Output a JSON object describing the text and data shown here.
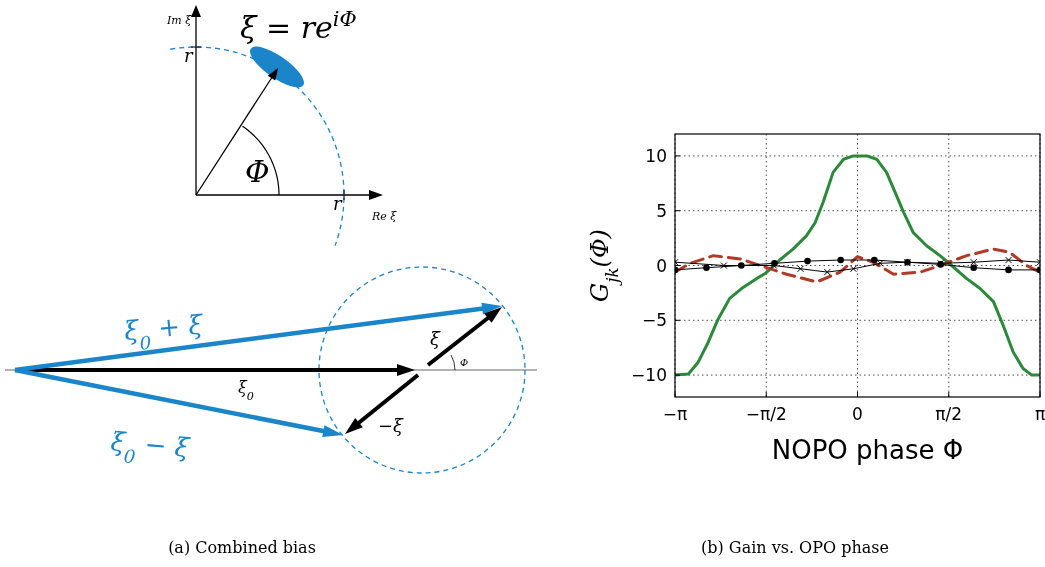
{
  "chart_data": [
    {
      "type": "other",
      "title": "(a) Combined bias",
      "annotations": [
        "ξ = re$^{iΦ}$",
        "Im ξ",
        "Re ξ",
        "r",
        "r",
        "Φ",
        "ξ$_{0}$ + ξ",
        "ξ$_{0}$ − ξ",
        "ξ",
        "Φ",
        "ξ$_{0}$",
        "−ξ"
      ]
    },
    {
      "type": "line",
      "title": "(b) Gain vs. OPO phase",
      "xlabel": "NOPO phase Φ",
      "ylabel": "G$_{jk}$(Φ)",
      "xlim": [
        -3.1416,
        3.1416
      ],
      "xticks": [
        {
          "value": -3.1416,
          "label": "−π"
        },
        {
          "value": -1.5708,
          "label": "−π/2"
        },
        0,
        {
          "value": 1.5708,
          "label": "π/2"
        },
        {
          "value": 3.1416,
          "label": "π"
        }
      ],
      "ylim": [
        -12,
        12
      ],
      "yticks": [
        -10,
        -5,
        0,
        5,
        10
      ],
      "grid": true,
      "series": [
        {
          "color": "#2a8a3a",
          "line_style": "solid",
          "marker": "none",
          "x": [
            -3.14,
            -2.91,
            -2.74,
            -2.57,
            -2.4,
            -2.2,
            -1.97,
            -1.74,
            -1.58,
            -1.34,
            -1.11,
            -0.88,
            -0.73,
            -0.59,
            -0.42,
            -0.24,
            -0.07,
            0.16,
            0.33,
            0.5,
            0.67,
            0.79,
            0.96,
            1.19,
            1.42,
            1.62,
            1.88,
            2.11,
            2.34,
            2.51,
            2.68,
            2.85,
            3.0,
            3.14
          ],
          "values": [
            -10,
            -9.9,
            -8.8,
            -7,
            -4.9,
            -3,
            -2,
            -1.2,
            -0.7,
            0.5,
            1.5,
            2.7,
            3.9,
            5.8,
            8.5,
            9.7,
            10,
            10,
            9.7,
            8.5,
            6.4,
            4.9,
            3,
            1.8,
            0.9,
            0,
            -1.2,
            -2.1,
            -3.3,
            -5.5,
            -7.9,
            -9.4,
            -10,
            -10
          ]
        },
        {
          "color": "#b03a26",
          "line_style": "dashed",
          "marker": "none",
          "x": [
            -3.14,
            -2.88,
            -2.48,
            -2.02,
            -1.56,
            -1.22,
            -0.7,
            -0.3,
            0.0,
            0.27,
            0.62,
            1.08,
            1.42,
            1.88,
            2.34,
            2.62,
            2.91,
            3.14
          ],
          "values": [
            -0.6,
            0.2,
            0.9,
            0.6,
            -0.2,
            -0.8,
            -1.5,
            -0.6,
            0.8,
            0.3,
            -0.8,
            -0.6,
            0,
            0.9,
            1.5,
            1.2,
            0,
            -0.6
          ]
        },
        {
          "color": "#000000",
          "line_style": "solid",
          "marker": "circle",
          "x": [
            -3.14,
            -2.6,
            -2.0,
            -1.43,
            -0.86,
            -0.29,
            0.29,
            0.86,
            1.43,
            2.0,
            2.6,
            3.14
          ],
          "values": [
            -0.4,
            -0.2,
            0,
            0.2,
            0.4,
            0.5,
            0.5,
            0.3,
            0.1,
            -0.2,
            -0.4,
            -0.4
          ]
        },
        {
          "color": "#000000",
          "line_style": "solid",
          "marker": "cross",
          "x": [
            -3.14,
            -2.3,
            -1.44,
            -0.98,
            -0.52,
            -0.07,
            0.39,
            0.86,
            1.43,
            2.0,
            2.6,
            3.14
          ],
          "values": [
            0.3,
            0,
            0,
            -0.3,
            -0.6,
            -0.3,
            0.2,
            0.3,
            0.2,
            0.3,
            0.5,
            0.3
          ]
        }
      ]
    }
  ]
}
